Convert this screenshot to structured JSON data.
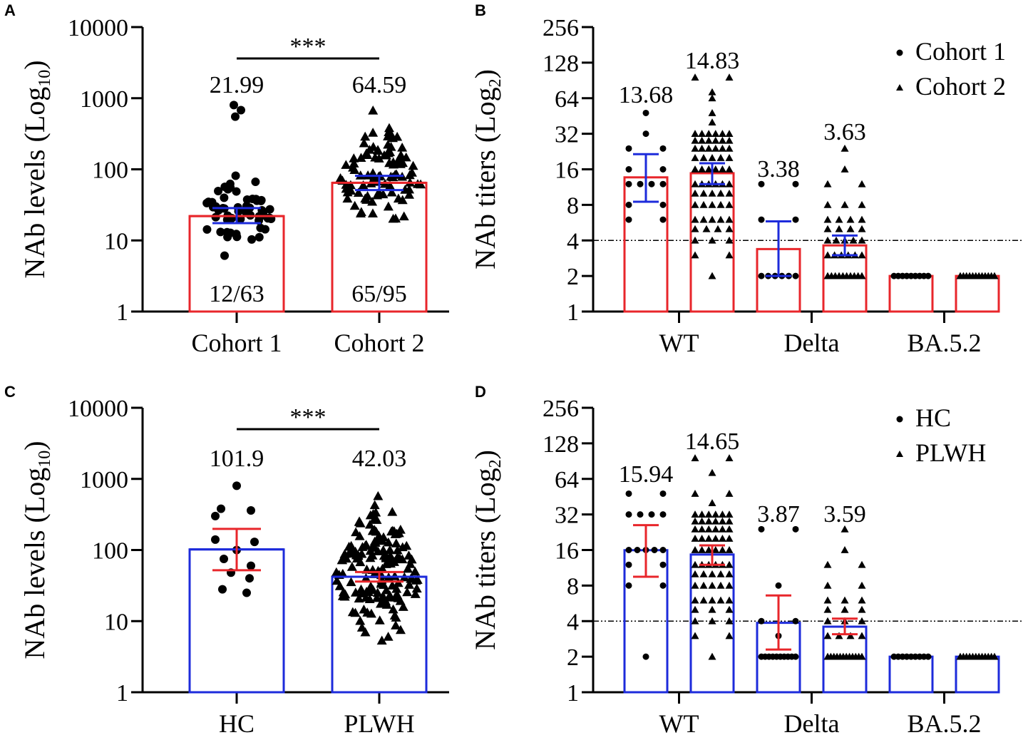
{
  "chart_data": [
    {
      "panel": "A",
      "type": "bar",
      "scale": "log10",
      "ylabel_main": "NAb levels (Log",
      "ylabel_sub": "10",
      "ylabel_close": ")",
      "yticks": [
        "1",
        "10",
        "100",
        "1000",
        "10000"
      ],
      "ylim": [
        1,
        10000
      ],
      "categories": [
        "Cohort 1",
        "Cohort 2"
      ],
      "values": [
        21.99,
        64.59
      ],
      "mean_labels": [
        "21.99",
        "64.59"
      ],
      "error": [
        [
          17.5,
          28.5
        ],
        [
          51.0,
          81.0
        ]
      ],
      "counts": [
        "12/63",
        "65/95"
      ],
      "significance": "***",
      "bar_color": "#e8262b",
      "error_color": "#1d2bdb",
      "n_points": [
        63,
        95
      ]
    },
    {
      "panel": "B",
      "type": "bar",
      "scale": "log2",
      "ylabel_main": "NAb titers (Log",
      "ylabel_sub": "2",
      "ylabel_close": ")",
      "yticks": [
        "1",
        "2",
        "4",
        "8",
        "16",
        "32",
        "64",
        "128",
        "256"
      ],
      "ylim": [
        1,
        256
      ],
      "categories": [
        "WT",
        "Delta",
        "BA.5.2"
      ],
      "series": [
        {
          "name": "Cohort 1",
          "marker": "circle",
          "values": [
            13.68,
            3.38,
            2.0
          ],
          "error": [
            [
              8.5,
              21.5
            ],
            [
              2.0,
              5.8
            ],
            [
              2.0,
              2.0
            ]
          ]
        },
        {
          "name": "Cohort 2",
          "marker": "triangle",
          "values": [
            14.83,
            3.63,
            2.0
          ],
          "error": [
            [
              12.0,
              18.0
            ],
            [
              3.0,
              4.4
            ],
            [
              2.0,
              2.0
            ]
          ]
        }
      ],
      "mean_labels": [
        "13.68",
        "14.83",
        "3.38",
        "3.63"
      ],
      "threshold": 4,
      "legend": [
        "Cohort 1",
        "Cohort 2"
      ],
      "legend_position": "top-right",
      "bar_color": "#e8262b",
      "error_color": "#1d2bdb"
    },
    {
      "panel": "C",
      "type": "bar",
      "scale": "log10",
      "ylabel_main": "NAb levels (Log",
      "ylabel_sub": "10",
      "ylabel_close": ")",
      "yticks": [
        "1",
        "10",
        "100",
        "1000",
        "10000"
      ],
      "ylim": [
        1,
        10000
      ],
      "categories": [
        "HC",
        "PLWH"
      ],
      "values": [
        101.9,
        42.03
      ],
      "mean_labels": [
        "101.9",
        "42.03"
      ],
      "error": [
        [
          52.0,
          198.0
        ],
        [
          36.0,
          49.0
        ]
      ],
      "significance": "***",
      "bar_color": "#1d2bdb",
      "error_color": "#e8262b",
      "n_points": [
        13,
        160
      ]
    },
    {
      "panel": "D",
      "type": "bar",
      "scale": "log2",
      "ylabel_main": "NAb titers (Log",
      "ylabel_sub": "2",
      "ylabel_close": ")",
      "yticks": [
        "1",
        "2",
        "4",
        "8",
        "16",
        "32",
        "64",
        "128",
        "256"
      ],
      "ylim": [
        1,
        256
      ],
      "categories": [
        "WT",
        "Delta",
        "BA.5.2"
      ],
      "series": [
        {
          "name": "HC",
          "marker": "circle",
          "values": [
            15.94,
            3.87,
            2.0
          ],
          "error": [
            [
              9.5,
              26.0
            ],
            [
              2.3,
              6.6
            ],
            [
              2.0,
              2.0
            ]
          ]
        },
        {
          "name": "PLWH",
          "marker": "triangle",
          "values": [
            14.65,
            3.59,
            2.0
          ],
          "error": [
            [
              12.0,
              17.5
            ],
            [
              3.1,
              4.2
            ],
            [
              2.0,
              2.0
            ]
          ]
        }
      ],
      "mean_labels": [
        "15.94",
        "14.65",
        "3.87",
        "3.59"
      ],
      "threshold": 4,
      "legend": [
        "HC",
        "PLWH"
      ],
      "legend_position": "top-right",
      "bar_color": "#1d2bdb",
      "error_color": "#e8262b"
    }
  ]
}
